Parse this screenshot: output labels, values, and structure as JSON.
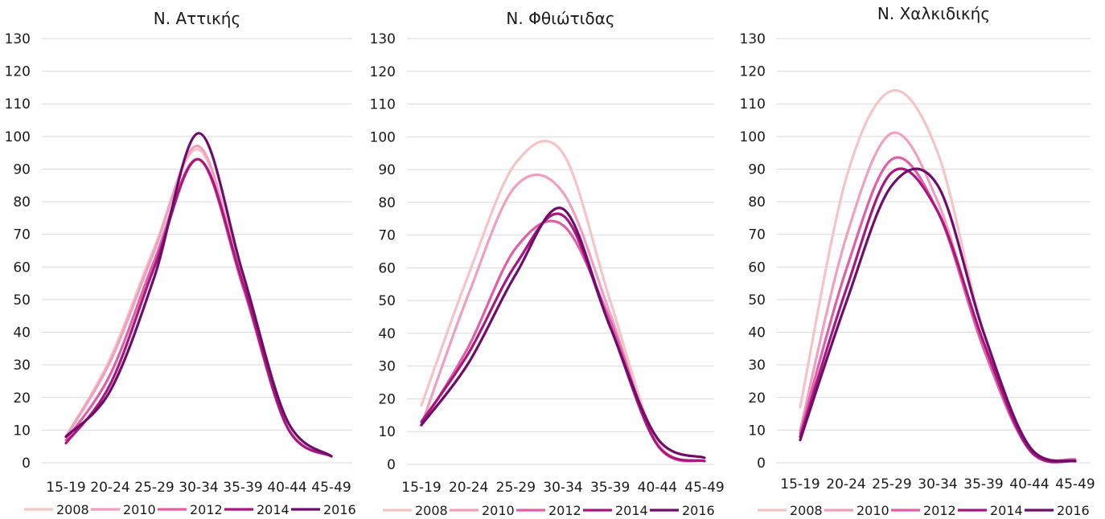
{
  "chart_data": [
    {
      "type": "line",
      "title": "Ν. Αττικής",
      "categories": [
        "15-19",
        "20-24",
        "25-29",
        "30-34",
        "35-39",
        "40-44",
        "45-49"
      ],
      "ylim": [
        0,
        130
      ],
      "yticks": [
        0,
        10,
        20,
        30,
        40,
        50,
        60,
        70,
        80,
        90,
        100,
        110,
        120,
        130
      ],
      "grid": true,
      "legend": "bottom",
      "series": [
        {
          "name": "2008",
          "color": "#f6c3c6",
          "values": [
            8,
            32,
            66,
            96,
            56,
            11,
            2
          ]
        },
        {
          "name": "2010",
          "color": "#f09fbe",
          "values": [
            8,
            31,
            65,
            97,
            55,
            11,
            2
          ]
        },
        {
          "name": "2012",
          "color": "#e05fa5",
          "values": [
            7,
            27,
            62,
            93,
            54,
            11,
            2
          ]
        },
        {
          "name": "2014",
          "color": "#a8167e",
          "values": [
            6,
            24,
            60,
            93,
            55,
            11,
            2
          ]
        },
        {
          "name": "2016",
          "color": "#6e0c6c",
          "values": [
            8,
            22,
            57,
            101,
            58,
            13,
            2
          ]
        }
      ]
    },
    {
      "type": "line",
      "title": "Ν. Φθιώτιδας",
      "categories": [
        "15-19",
        "20-24",
        "25-29",
        "30-34",
        "35-39",
        "40-44",
        "45-49"
      ],
      "ylim": [
        0,
        130
      ],
      "yticks": [
        0,
        10,
        20,
        30,
        40,
        50,
        60,
        70,
        80,
        90,
        100,
        110,
        120,
        130
      ],
      "grid": true,
      "legend": "bottom",
      "series": [
        {
          "name": "2008",
          "color": "#f6c3c6",
          "values": [
            18,
            58,
            92,
            95,
            50,
            7,
            1
          ]
        },
        {
          "name": "2010",
          "color": "#f09fbe",
          "values": [
            12,
            52,
            85,
            83,
            46,
            6,
            1
          ]
        },
        {
          "name": "2012",
          "color": "#e05fa5",
          "values": [
            12,
            36,
            66,
            73,
            44,
            6,
            1
          ]
        },
        {
          "name": "2014",
          "color": "#a8167e",
          "values": [
            13,
            34,
            61,
            76,
            42,
            6,
            1
          ]
        },
        {
          "name": "2016",
          "color": "#6e0c6c",
          "values": [
            12,
            31,
            58,
            78,
            42,
            8,
            2
          ]
        }
      ]
    },
    {
      "type": "line",
      "title": "Ν. Χαλκιδικής",
      "categories": [
        "15-19",
        "20-24",
        "25-29",
        "30-34",
        "35-39",
        "40-44",
        "45-49"
      ],
      "ylim": [
        0,
        130
      ],
      "yticks": [
        0,
        10,
        20,
        30,
        40,
        50,
        60,
        70,
        80,
        90,
        100,
        110,
        120,
        130
      ],
      "grid": true,
      "legend": "bottom",
      "series": [
        {
          "name": "2008",
          "color": "#f6c3c6",
          "values": [
            17,
            87,
            114,
            95,
            40,
            5,
            1
          ]
        },
        {
          "name": "2010",
          "color": "#f09fbe",
          "values": [
            10,
            69,
            101,
            80,
            36,
            4,
            1
          ]
        },
        {
          "name": "2012",
          "color": "#e05fa5",
          "values": [
            9,
            59,
            93,
            77,
            35,
            4,
            1
          ]
        },
        {
          "name": "2014",
          "color": "#a8167e",
          "values": [
            8,
            53,
            89,
            77,
            37,
            4,
            0.5
          ]
        },
        {
          "name": "2016",
          "color": "#6e0c6c",
          "values": [
            7,
            49,
            85,
            85,
            40,
            5,
            0.5
          ]
        }
      ]
    }
  ]
}
